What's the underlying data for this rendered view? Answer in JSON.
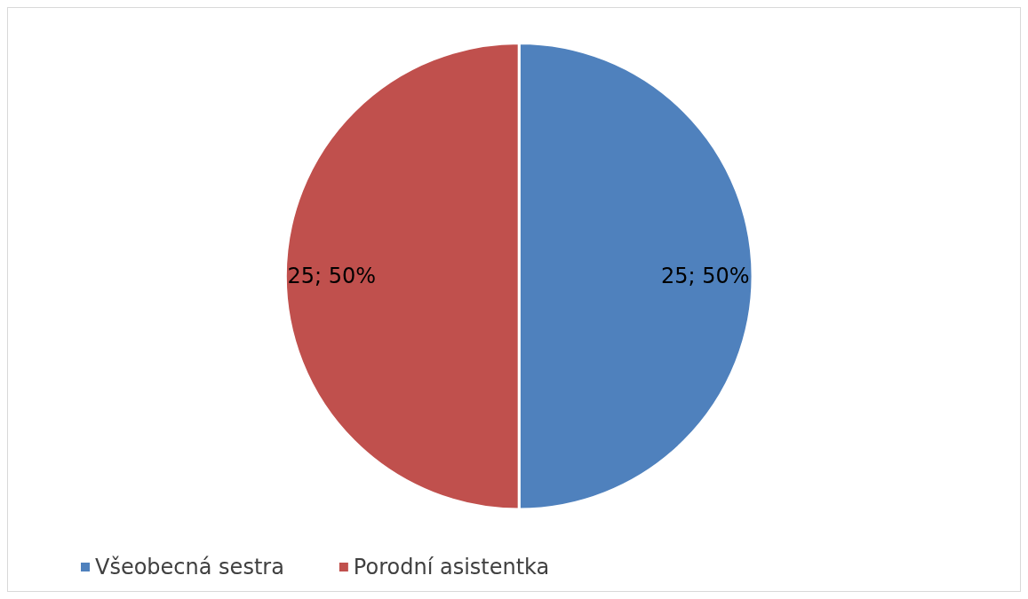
{
  "chart_data": {
    "type": "pie",
    "categories": [
      "Všeobecná sestra",
      "Porodní asistentka"
    ],
    "values": [
      25,
      25
    ],
    "colors": [
      "#4f81bd",
      "#c0504d"
    ],
    "value_labels": [
      "25; 50%",
      "25; 50%"
    ],
    "legend": "bottom left"
  }
}
